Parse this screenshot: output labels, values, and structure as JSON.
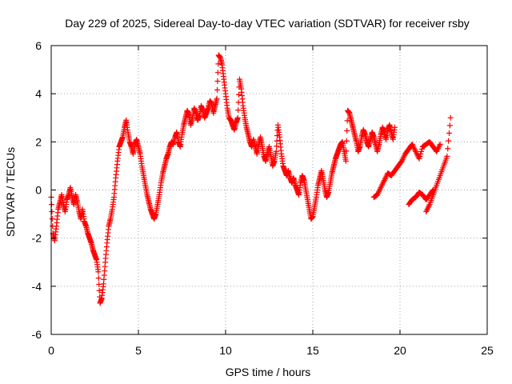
{
  "chart_data": {
    "type": "scatter",
    "title": "Day 229 of 2025, Sidereal Day-to-day VTEC variation (SDTVAR) for receiver rsby",
    "xlabel": "GPS time / hours",
    "ylabel": "SDTVAR / TECUs",
    "xlim": [
      0,
      25
    ],
    "ylim": [
      -6,
      6
    ],
    "x_ticks": [
      0,
      5,
      10,
      15,
      20,
      25
    ],
    "y_ticks": [
      -6,
      -4,
      -2,
      0,
      2,
      4,
      6
    ],
    "grid": true,
    "marker": "+",
    "series_color": "#ff0000",
    "series": [
      {
        "name": "rsby",
        "points": [
          [
            0.0,
            -0.3
          ],
          [
            0.1,
            -1.8
          ],
          [
            0.2,
            -2.1
          ],
          [
            0.3,
            -1.5
          ],
          [
            0.4,
            -0.8
          ],
          [
            0.5,
            -0.5
          ],
          [
            0.6,
            -0.2
          ],
          [
            0.7,
            -0.6
          ],
          [
            0.8,
            -0.9
          ],
          [
            0.9,
            -0.4
          ],
          [
            1.0,
            -0.2
          ],
          [
            1.1,
            0.1
          ],
          [
            1.2,
            -0.3
          ],
          [
            1.3,
            -0.6
          ],
          [
            1.4,
            -0.2
          ],
          [
            1.5,
            -0.5
          ],
          [
            1.6,
            -0.9
          ],
          [
            1.7,
            -1.2
          ],
          [
            1.8,
            -0.8
          ],
          [
            1.9,
            -1.3
          ],
          [
            2.0,
            -1.5
          ],
          [
            2.1,
            -1.8
          ],
          [
            2.2,
            -2.0
          ],
          [
            2.3,
            -2.2
          ],
          [
            2.4,
            -2.5
          ],
          [
            2.5,
            -2.7
          ],
          [
            2.6,
            -2.9
          ],
          [
            2.7,
            -3.4
          ],
          [
            2.8,
            -4.7
          ],
          [
            2.9,
            -4.5
          ],
          [
            3.0,
            -3.9
          ],
          [
            3.1,
            -3.0
          ],
          [
            3.2,
            -2.2
          ],
          [
            3.3,
            -1.5
          ],
          [
            3.4,
            -1.2
          ],
          [
            3.5,
            -0.8
          ],
          [
            3.6,
            -0.3
          ],
          [
            3.7,
            0.5
          ],
          [
            3.8,
            1.2
          ],
          [
            3.9,
            1.8
          ],
          [
            4.0,
            2.0
          ],
          [
            4.1,
            2.2
          ],
          [
            4.2,
            2.6
          ],
          [
            4.3,
            2.9
          ],
          [
            4.4,
            2.4
          ],
          [
            4.5,
            2.0
          ],
          [
            4.6,
            1.8
          ],
          [
            4.7,
            1.5
          ],
          [
            4.8,
            1.9
          ],
          [
            4.9,
            2.1
          ],
          [
            5.0,
            1.8
          ],
          [
            5.1,
            1.5
          ],
          [
            5.2,
            1.0
          ],
          [
            5.3,
            0.6
          ],
          [
            5.4,
            0.2
          ],
          [
            5.5,
            -0.2
          ],
          [
            5.6,
            -0.5
          ],
          [
            5.7,
            -0.8
          ],
          [
            5.8,
            -1.0
          ],
          [
            5.9,
            -1.2
          ],
          [
            6.0,
            -1.0
          ],
          [
            6.1,
            -0.6
          ],
          [
            6.2,
            -0.2
          ],
          [
            6.3,
            0.3
          ],
          [
            6.4,
            0.7
          ],
          [
            6.5,
            1.0
          ],
          [
            6.6,
            1.3
          ],
          [
            6.7,
            1.5
          ],
          [
            6.8,
            1.8
          ],
          [
            6.9,
            2.0
          ],
          [
            7.0,
            1.9
          ],
          [
            7.1,
            2.2
          ],
          [
            7.2,
            2.4
          ],
          [
            7.3,
            2.0
          ],
          [
            7.4,
            1.8
          ],
          [
            7.5,
            2.3
          ],
          [
            7.6,
            2.7
          ],
          [
            7.7,
            3.0
          ],
          [
            7.8,
            3.3
          ],
          [
            7.9,
            3.1
          ],
          [
            8.0,
            2.7
          ],
          [
            8.1,
            3.0
          ],
          [
            8.2,
            3.4
          ],
          [
            8.3,
            3.2
          ],
          [
            8.4,
            2.9
          ],
          [
            8.5,
            3.1
          ],
          [
            8.6,
            3.5
          ],
          [
            8.7,
            3.3
          ],
          [
            8.8,
            3.0
          ],
          [
            8.9,
            3.2
          ],
          [
            9.0,
            3.4
          ],
          [
            9.1,
            3.7
          ],
          [
            9.2,
            3.6
          ],
          [
            9.3,
            3.2
          ],
          [
            9.4,
            3.5
          ],
          [
            9.5,
            3.8
          ],
          [
            9.6,
            5.6
          ],
          [
            9.7,
            5.5
          ],
          [
            9.8,
            5.2
          ],
          [
            9.9,
            4.6
          ],
          [
            10.0,
            4.0
          ],
          [
            10.1,
            3.4
          ],
          [
            10.2,
            3.0
          ],
          [
            10.3,
            2.9
          ],
          [
            10.4,
            2.7
          ],
          [
            10.5,
            2.5
          ],
          [
            10.6,
            2.8
          ],
          [
            10.7,
            3.0
          ],
          [
            10.8,
            4.6
          ],
          [
            10.9,
            4.2
          ],
          [
            11.0,
            3.5
          ],
          [
            11.1,
            3.0
          ],
          [
            11.2,
            2.6
          ],
          [
            11.3,
            2.3
          ],
          [
            11.4,
            2.0
          ],
          [
            11.5,
            1.8
          ],
          [
            11.6,
            2.1
          ],
          [
            11.7,
            1.8
          ],
          [
            11.8,
            1.5
          ],
          [
            11.9,
            1.9
          ],
          [
            12.0,
            2.2
          ],
          [
            12.1,
            1.8
          ],
          [
            12.2,
            1.4
          ],
          [
            12.3,
            1.2
          ],
          [
            12.4,
            1.5
          ],
          [
            12.5,
            1.8
          ],
          [
            12.6,
            1.4
          ],
          [
            12.7,
            1.0
          ],
          [
            12.8,
            1.2
          ],
          [
            12.9,
            1.6
          ],
          [
            13.0,
            2.7
          ],
          [
            13.1,
            2.2
          ],
          [
            13.2,
            1.5
          ],
          [
            13.3,
            1.0
          ],
          [
            13.4,
            0.8
          ],
          [
            13.5,
            0.6
          ],
          [
            13.6,
            0.8
          ],
          [
            13.7,
            0.5
          ],
          [
            13.8,
            0.3
          ],
          [
            13.9,
            0.5
          ],
          [
            14.0,
            0.2
          ],
          [
            14.1,
            0.0
          ],
          [
            14.2,
            -0.2
          ],
          [
            14.3,
            0.3
          ],
          [
            14.4,
            0.6
          ],
          [
            14.5,
            0.4
          ],
          [
            14.6,
            0.0
          ],
          [
            14.7,
            -0.4
          ],
          [
            14.8,
            -0.8
          ],
          [
            14.9,
            -1.2
          ],
          [
            15.0,
            -1.1
          ],
          [
            15.1,
            -0.7
          ],
          [
            15.2,
            -0.3
          ],
          [
            15.3,
            0.2
          ],
          [
            15.4,
            0.5
          ],
          [
            15.5,
            0.8
          ],
          [
            15.6,
            0.4
          ],
          [
            15.7,
            0.0
          ],
          [
            15.8,
            -0.3
          ],
          [
            15.9,
            -0.1
          ],
          [
            16.0,
            0.3
          ],
          [
            16.1,
            0.7
          ],
          [
            16.2,
            1.0
          ],
          [
            16.3,
            1.3
          ],
          [
            16.4,
            1.5
          ],
          [
            16.5,
            1.7
          ],
          [
            16.6,
            1.9
          ],
          [
            16.7,
            2.0
          ],
          [
            16.8,
            1.6
          ],
          [
            16.9,
            1.2
          ],
          [
            17.0,
            3.3
          ],
          [
            17.1,
            3.2
          ],
          [
            17.2,
            2.9
          ],
          [
            17.3,
            2.6
          ],
          [
            17.4,
            2.3
          ],
          [
            17.5,
            2.0
          ],
          [
            17.6,
            1.6
          ],
          [
            17.7,
            1.8
          ],
          [
            17.8,
            2.2
          ],
          [
            17.9,
            2.5
          ],
          [
            18.0,
            2.3
          ],
          [
            18.1,
            2.0
          ],
          [
            18.2,
            1.8
          ],
          [
            18.3,
            2.1
          ],
          [
            18.4,
            2.4
          ],
          [
            18.5,
            2.2
          ],
          [
            18.6,
            1.9
          ],
          [
            18.7,
            1.6
          ],
          [
            18.8,
            1.9
          ],
          [
            18.9,
            2.3
          ],
          [
            19.0,
            2.6
          ],
          [
            19.1,
            2.4
          ],
          [
            19.2,
            2.1
          ],
          [
            19.3,
            2.5
          ],
          [
            19.4,
            2.7
          ],
          [
            19.5,
            2.4
          ],
          [
            19.6,
            2.1
          ],
          [
            19.7,
            2.6
          ],
          [
            18.5,
            -0.3
          ],
          [
            18.7,
            -0.2
          ],
          [
            18.9,
            0.1
          ],
          [
            19.1,
            0.4
          ],
          [
            19.3,
            0.7
          ],
          [
            19.5,
            0.6
          ],
          [
            19.7,
            0.8
          ],
          [
            19.9,
            1.0
          ],
          [
            20.1,
            1.2
          ],
          [
            20.3,
            1.5
          ],
          [
            20.5,
            1.7
          ],
          [
            20.7,
            1.9
          ],
          [
            20.9,
            1.6
          ],
          [
            21.1,
            1.3
          ],
          [
            21.3,
            1.8
          ],
          [
            21.5,
            1.9
          ],
          [
            21.7,
            2.0
          ],
          [
            21.9,
            1.8
          ],
          [
            22.1,
            1.6
          ],
          [
            22.3,
            1.9
          ],
          [
            20.5,
            -0.6
          ],
          [
            20.7,
            -0.4
          ],
          [
            20.9,
            -0.3
          ],
          [
            21.1,
            -0.1
          ],
          [
            21.3,
            -0.2
          ],
          [
            21.5,
            -0.4
          ],
          [
            21.7,
            -0.2
          ],
          [
            21.9,
            0.0
          ],
          [
            21.5,
            -0.9
          ],
          [
            21.7,
            -0.6
          ],
          [
            21.9,
            -0.2
          ],
          [
            22.1,
            0.2
          ],
          [
            22.3,
            0.6
          ],
          [
            22.5,
            1.0
          ],
          [
            22.7,
            1.4
          ],
          [
            22.9,
            3.0
          ]
        ]
      }
    ]
  }
}
